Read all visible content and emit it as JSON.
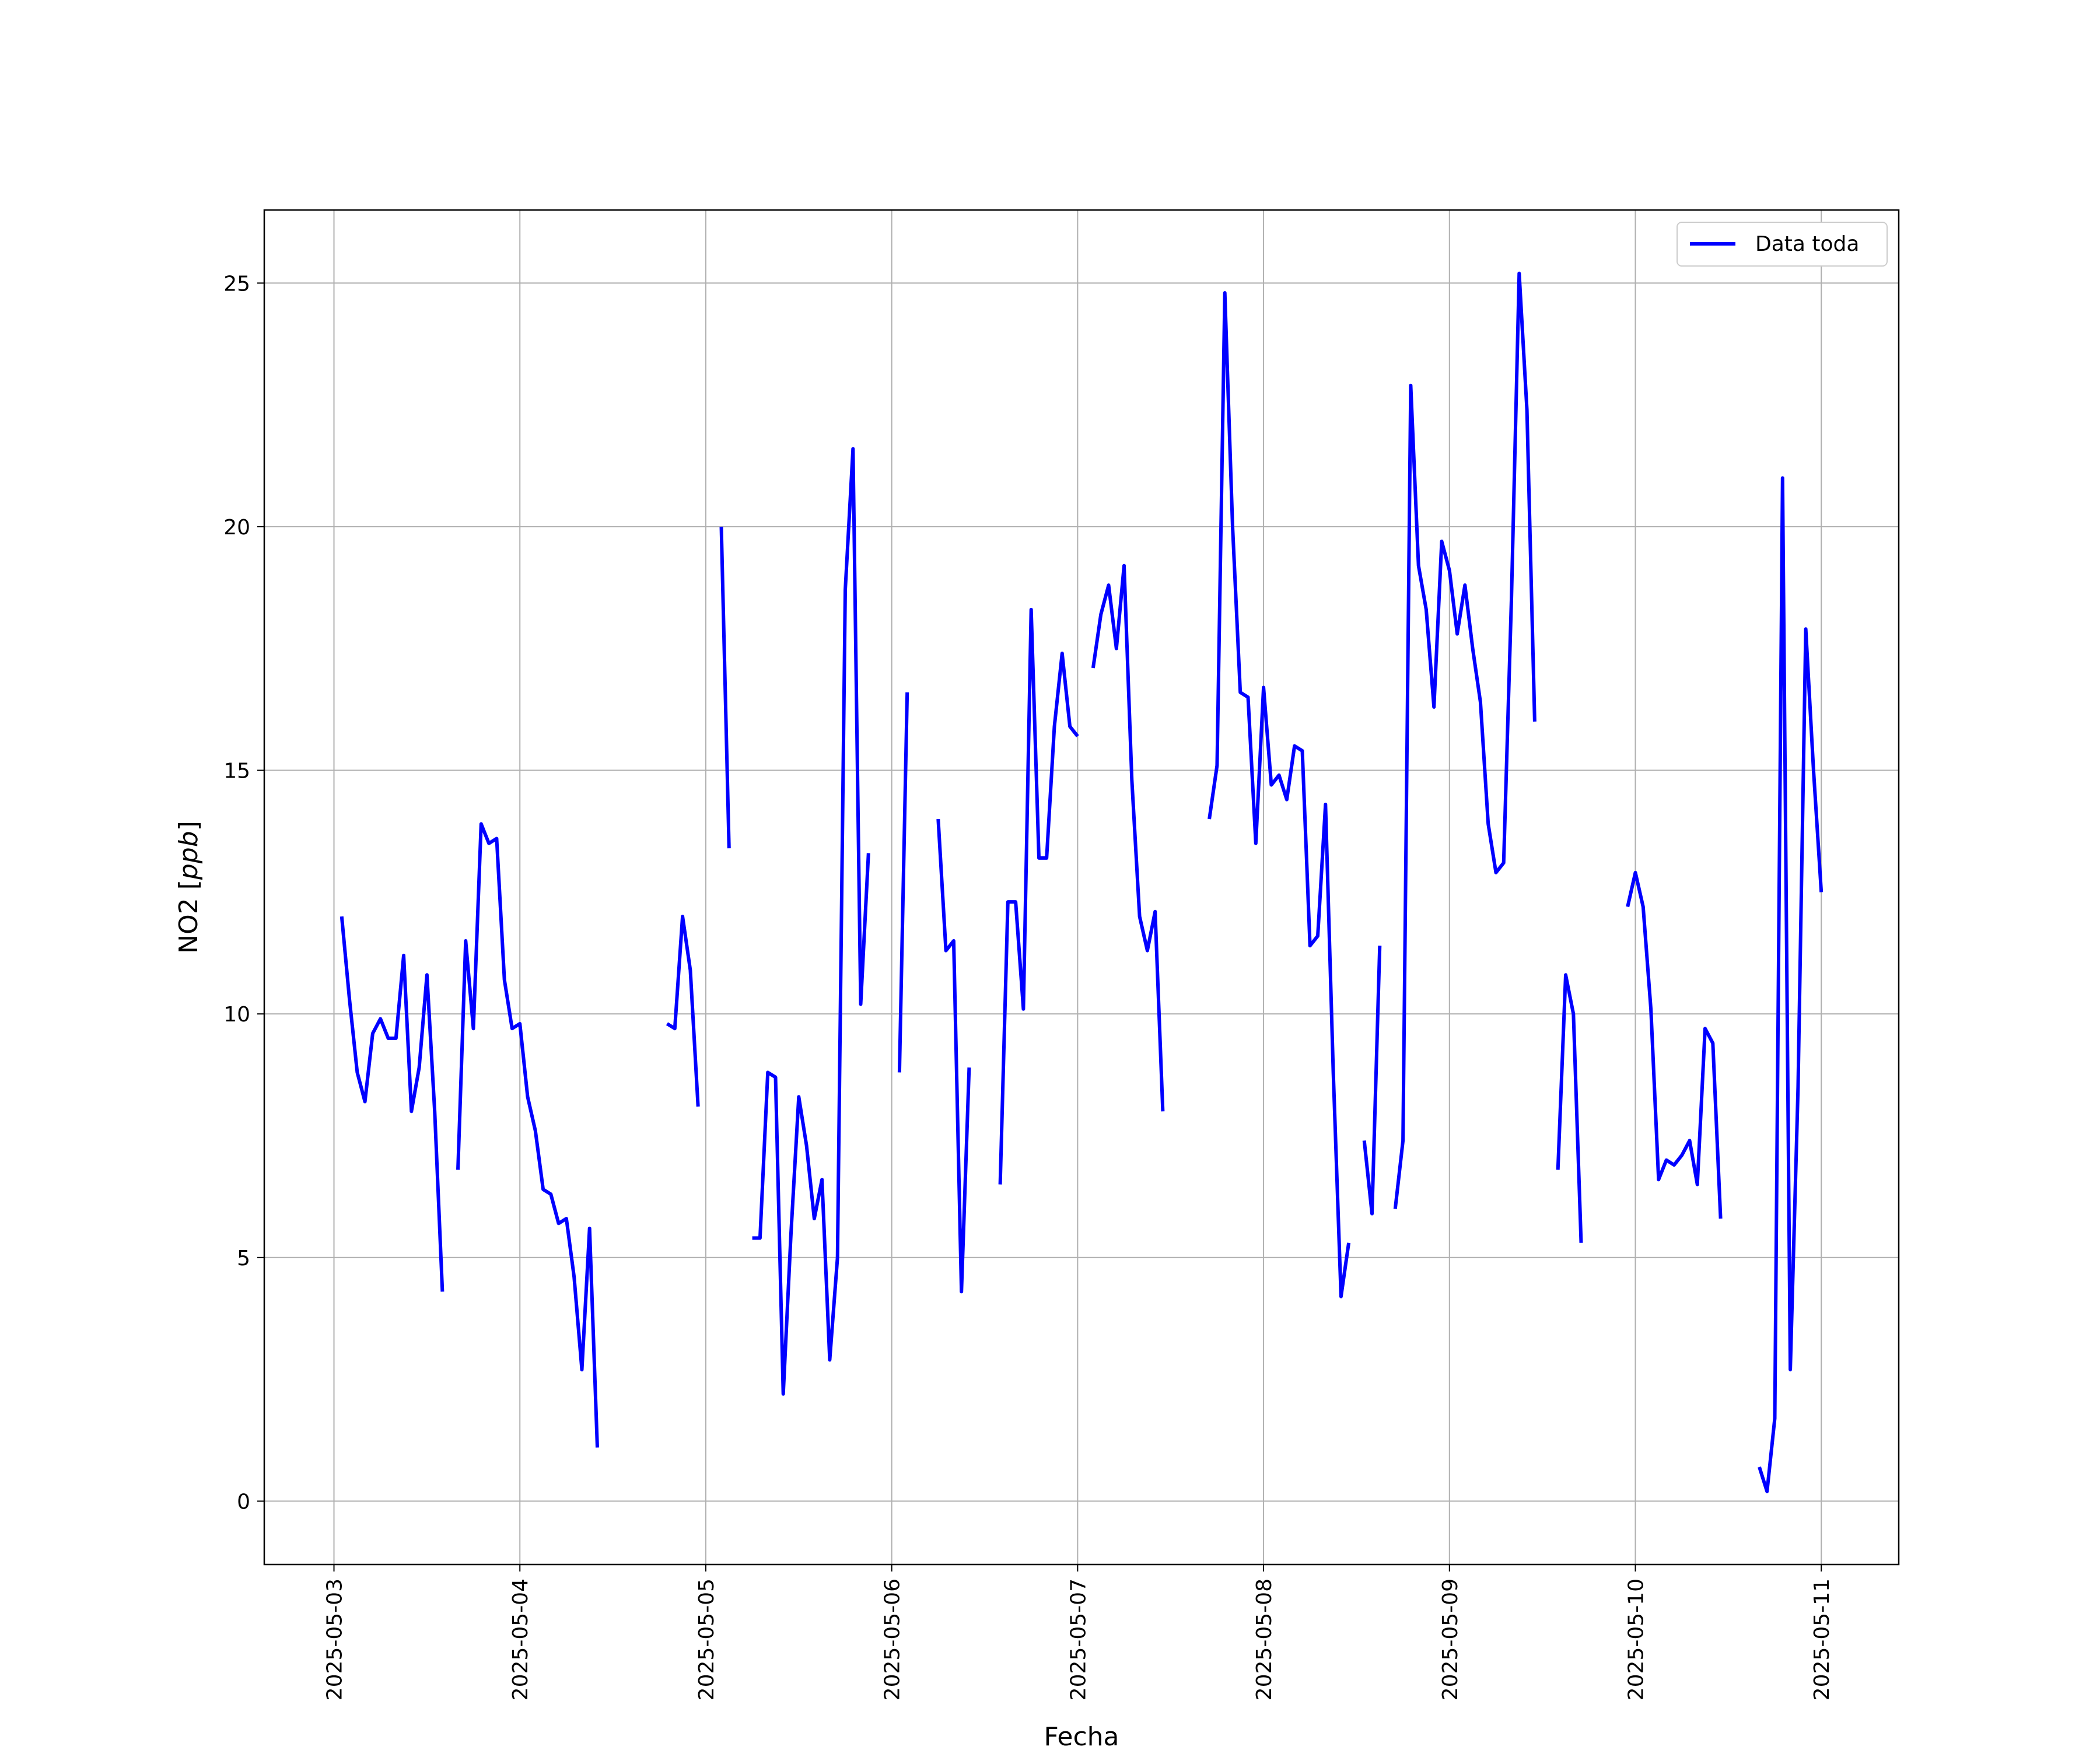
{
  "chart_data": {
    "type": "line",
    "xlabel": "Fecha",
    "ylabel": "NO2 [ppb]",
    "ylabel_parts": {
      "main": "NO2 [",
      "unit": "ppb",
      "close": "]"
    },
    "xlim_days": [
      "2025-05-02 15:00",
      "2025-05-11 10:00"
    ],
    "ylim": [
      -1.3,
      26.5
    ],
    "x_ticks": [
      "2025-05-03",
      "2025-05-04",
      "2025-05-05",
      "2025-05-06",
      "2025-05-07",
      "2025-05-08",
      "2025-05-09",
      "2025-05-10",
      "2025-05-11"
    ],
    "y_ticks": [
      0,
      5,
      10,
      15,
      20,
      25
    ],
    "grid": true,
    "legend_position": "top-right",
    "series": [
      {
        "name": "Data toda",
        "color": "#0000ff",
        "segments": [
          [
            [
              "2025-05-03 01:00",
              12.0
            ],
            [
              "2025-05-03 02:00",
              10.3
            ],
            [
              "2025-05-03 03:00",
              8.8
            ],
            [
              "2025-05-03 04:00",
              8.2
            ],
            [
              "2025-05-03 05:00",
              9.6
            ],
            [
              "2025-05-03 06:00",
              9.9
            ],
            [
              "2025-05-03 07:00",
              9.5
            ],
            [
              "2025-05-03 08:00",
              9.5
            ],
            [
              "2025-05-03 09:00",
              11.2
            ],
            [
              "2025-05-03 10:00",
              8.0
            ],
            [
              "2025-05-03 11:00",
              8.9
            ],
            [
              "2025-05-03 12:00",
              10.8
            ],
            [
              "2025-05-03 13:00",
              8.0
            ],
            [
              "2025-05-03 14:00",
              4.3
            ]
          ],
          [
            [
              "2025-05-03 16:00",
              6.8
            ],
            [
              "2025-05-03 17:00",
              11.5
            ],
            [
              "2025-05-03 18:00",
              9.7
            ],
            [
              "2025-05-03 19:00",
              13.9
            ],
            [
              "2025-05-03 20:00",
              13.5
            ],
            [
              "2025-05-03 21:00",
              13.6
            ],
            [
              "2025-05-03 22:00",
              10.7
            ],
            [
              "2025-05-03 23:00",
              9.7
            ],
            [
              "2025-05-04 00:00",
              9.8
            ],
            [
              "2025-05-04 01:00",
              8.3
            ],
            [
              "2025-05-04 02:00",
              7.6
            ],
            [
              "2025-05-04 03:00",
              6.4
            ],
            [
              "2025-05-04 04:00",
              6.3
            ],
            [
              "2025-05-04 05:00",
              5.7
            ],
            [
              "2025-05-04 06:00",
              5.8
            ],
            [
              "2025-05-04 07:00",
              4.6
            ],
            [
              "2025-05-04 08:00",
              2.7
            ],
            [
              "2025-05-04 09:00",
              5.6
            ],
            [
              "2025-05-04 10:00",
              1.1
            ]
          ],
          [
            [
              "2025-05-04 19:00",
              9.8
            ],
            [
              "2025-05-04 20:00",
              9.7
            ],
            [
              "2025-05-04 21:00",
              12.0
            ],
            [
              "2025-05-04 22:00",
              10.9
            ],
            [
              "2025-05-04 23:00",
              8.1
            ]
          ],
          [
            [
              "2025-05-05 02:00",
              20.0
            ],
            [
              "2025-05-05 03:00",
              13.4
            ]
          ],
          [
            [
              "2025-05-05 06:00",
              5.4
            ],
            [
              "2025-05-05 07:00",
              5.4
            ],
            [
              "2025-05-05 08:00",
              8.8
            ],
            [
              "2025-05-05 09:00",
              8.7
            ],
            [
              "2025-05-05 10:00",
              2.2
            ],
            [
              "2025-05-05 11:00",
              5.5
            ],
            [
              "2025-05-05 12:00",
              8.3
            ],
            [
              "2025-05-05 13:00",
              7.3
            ],
            [
              "2025-05-05 14:00",
              5.8
            ],
            [
              "2025-05-05 15:00",
              6.6
            ],
            [
              "2025-05-05 16:00",
              2.9
            ],
            [
              "2025-05-05 17:00",
              5.0
            ],
            [
              "2025-05-05 18:00",
              18.7
            ],
            [
              "2025-05-05 19:00",
              21.6
            ],
            [
              "2025-05-05 20:00",
              10.2
            ],
            [
              "2025-05-05 21:00",
              13.3
            ]
          ],
          [
            [
              "2025-05-06 01:00",
              8.8
            ],
            [
              "2025-05-06 02:00",
              16.6
            ]
          ],
          [
            [
              "2025-05-06 06:00",
              14.0
            ],
            [
              "2025-05-06 07:00",
              11.3
            ],
            [
              "2025-05-06 08:00",
              11.5
            ],
            [
              "2025-05-06 09:00",
              4.3
            ],
            [
              "2025-05-06 10:00",
              8.9
            ]
          ],
          [
            [
              "2025-05-06 14:00",
              6.5
            ],
            [
              "2025-05-06 15:00",
              12.3
            ],
            [
              "2025-05-06 16:00",
              12.3
            ],
            [
              "2025-05-06 17:00",
              10.1
            ],
            [
              "2025-05-06 18:00",
              18.3
            ],
            [
              "2025-05-06 19:00",
              13.2
            ],
            [
              "2025-05-06 20:00",
              13.2
            ],
            [
              "2025-05-06 21:00",
              15.9
            ],
            [
              "2025-05-06 22:00",
              17.4
            ],
            [
              "2025-05-06 23:00",
              15.9
            ],
            [
              "2025-05-07 00:00",
              15.7
            ]
          ],
          [
            [
              "2025-05-07 02:00",
              17.1
            ],
            [
              "2025-05-07 03:00",
              18.2
            ],
            [
              "2025-05-07 04:00",
              18.8
            ],
            [
              "2025-05-07 05:00",
              17.5
            ],
            [
              "2025-05-07 06:00",
              19.2
            ],
            [
              "2025-05-07 07:00",
              14.8
            ],
            [
              "2025-05-07 08:00",
              12.0
            ],
            [
              "2025-05-07 09:00",
              11.3
            ],
            [
              "2025-05-07 10:00",
              12.1
            ],
            [
              "2025-05-07 11:00",
              8.0
            ]
          ],
          [
            [
              "2025-05-07 17:00",
              14.0
            ],
            [
              "2025-05-07 18:00",
              15.1
            ],
            [
              "2025-05-07 19:00",
              24.8
            ],
            [
              "2025-05-07 20:00",
              20.0
            ],
            [
              "2025-05-07 21:00",
              16.6
            ],
            [
              "2025-05-07 22:00",
              16.5
            ],
            [
              "2025-05-07 23:00",
              13.5
            ],
            [
              "2025-05-08 00:00",
              16.7
            ],
            [
              "2025-05-08 01:00",
              14.7
            ],
            [
              "2025-05-08 02:00",
              14.9
            ],
            [
              "2025-05-08 03:00",
              14.4
            ],
            [
              "2025-05-08 04:00",
              15.5
            ],
            [
              "2025-05-08 05:00",
              15.4
            ],
            [
              "2025-05-08 06:00",
              11.4
            ],
            [
              "2025-05-08 07:00",
              11.6
            ],
            [
              "2025-05-08 08:00",
              14.3
            ],
            [
              "2025-05-08 09:00",
              8.8
            ],
            [
              "2025-05-08 10:00",
              4.2
            ],
            [
              "2025-05-08 11:00",
              5.3
            ]
          ],
          [
            [
              "2025-05-08 13:00",
              7.4
            ],
            [
              "2025-05-08 14:00",
              5.9
            ],
            [
              "2025-05-08 15:00",
              11.4
            ]
          ],
          [
            [
              "2025-05-08 17:00",
              6.0
            ],
            [
              "2025-05-08 18:00",
              7.4
            ],
            [
              "2025-05-08 19:00",
              22.9
            ],
            [
              "2025-05-08 20:00",
              19.2
            ],
            [
              "2025-05-08 21:00",
              18.3
            ],
            [
              "2025-05-08 22:00",
              16.3
            ],
            [
              "2025-05-08 23:00",
              19.7
            ],
            [
              "2025-05-09 00:00",
              19.1
            ],
            [
              "2025-05-09 01:00",
              17.8
            ],
            [
              "2025-05-09 02:00",
              18.8
            ],
            [
              "2025-05-09 03:00",
              17.5
            ],
            [
              "2025-05-09 04:00",
              16.4
            ],
            [
              "2025-05-09 05:00",
              13.9
            ],
            [
              "2025-05-09 06:00",
              12.9
            ],
            [
              "2025-05-09 07:00",
              13.1
            ],
            [
              "2025-05-09 08:00",
              18.5
            ],
            [
              "2025-05-09 09:00",
              25.2
            ],
            [
              "2025-05-09 10:00",
              22.4
            ],
            [
              "2025-05-09 11:00",
              16.0
            ]
          ],
          [
            [
              "2025-05-09 14:00",
              6.8
            ],
            [
              "2025-05-09 15:00",
              10.8
            ],
            [
              "2025-05-09 16:00",
              10.0
            ],
            [
              "2025-05-09 17:00",
              5.3
            ]
          ],
          [
            [
              "2025-05-09 23:00",
              12.2
            ],
            [
              "2025-05-10 00:00",
              12.9
            ],
            [
              "2025-05-10 01:00",
              12.2
            ],
            [
              "2025-05-10 02:00",
              10.1
            ],
            [
              "2025-05-10 03:00",
              6.6
            ],
            [
              "2025-05-10 04:00",
              7.0
            ],
            [
              "2025-05-10 05:00",
              6.9
            ],
            [
              "2025-05-10 06:00",
              7.1
            ],
            [
              "2025-05-10 07:00",
              7.4
            ],
            [
              "2025-05-10 08:00",
              6.5
            ],
            [
              "2025-05-10 09:00",
              9.7
            ],
            [
              "2025-05-10 10:00",
              9.4
            ],
            [
              "2025-05-10 11:00",
              5.8
            ]
          ],
          [
            [
              "2025-05-10 16:00",
              0.7
            ],
            [
              "2025-05-10 17:00",
              0.2
            ],
            [
              "2025-05-10 18:00",
              1.7
            ],
            [
              "2025-05-10 19:00",
              21.0
            ],
            [
              "2025-05-10 20:00",
              2.7
            ],
            [
              "2025-05-10 21:00",
              8.5
            ],
            [
              "2025-05-10 22:00",
              17.9
            ],
            [
              "2025-05-10 23:00",
              15.0
            ],
            [
              "2025-05-11 00:00",
              12.5
            ]
          ]
        ]
      }
    ]
  }
}
